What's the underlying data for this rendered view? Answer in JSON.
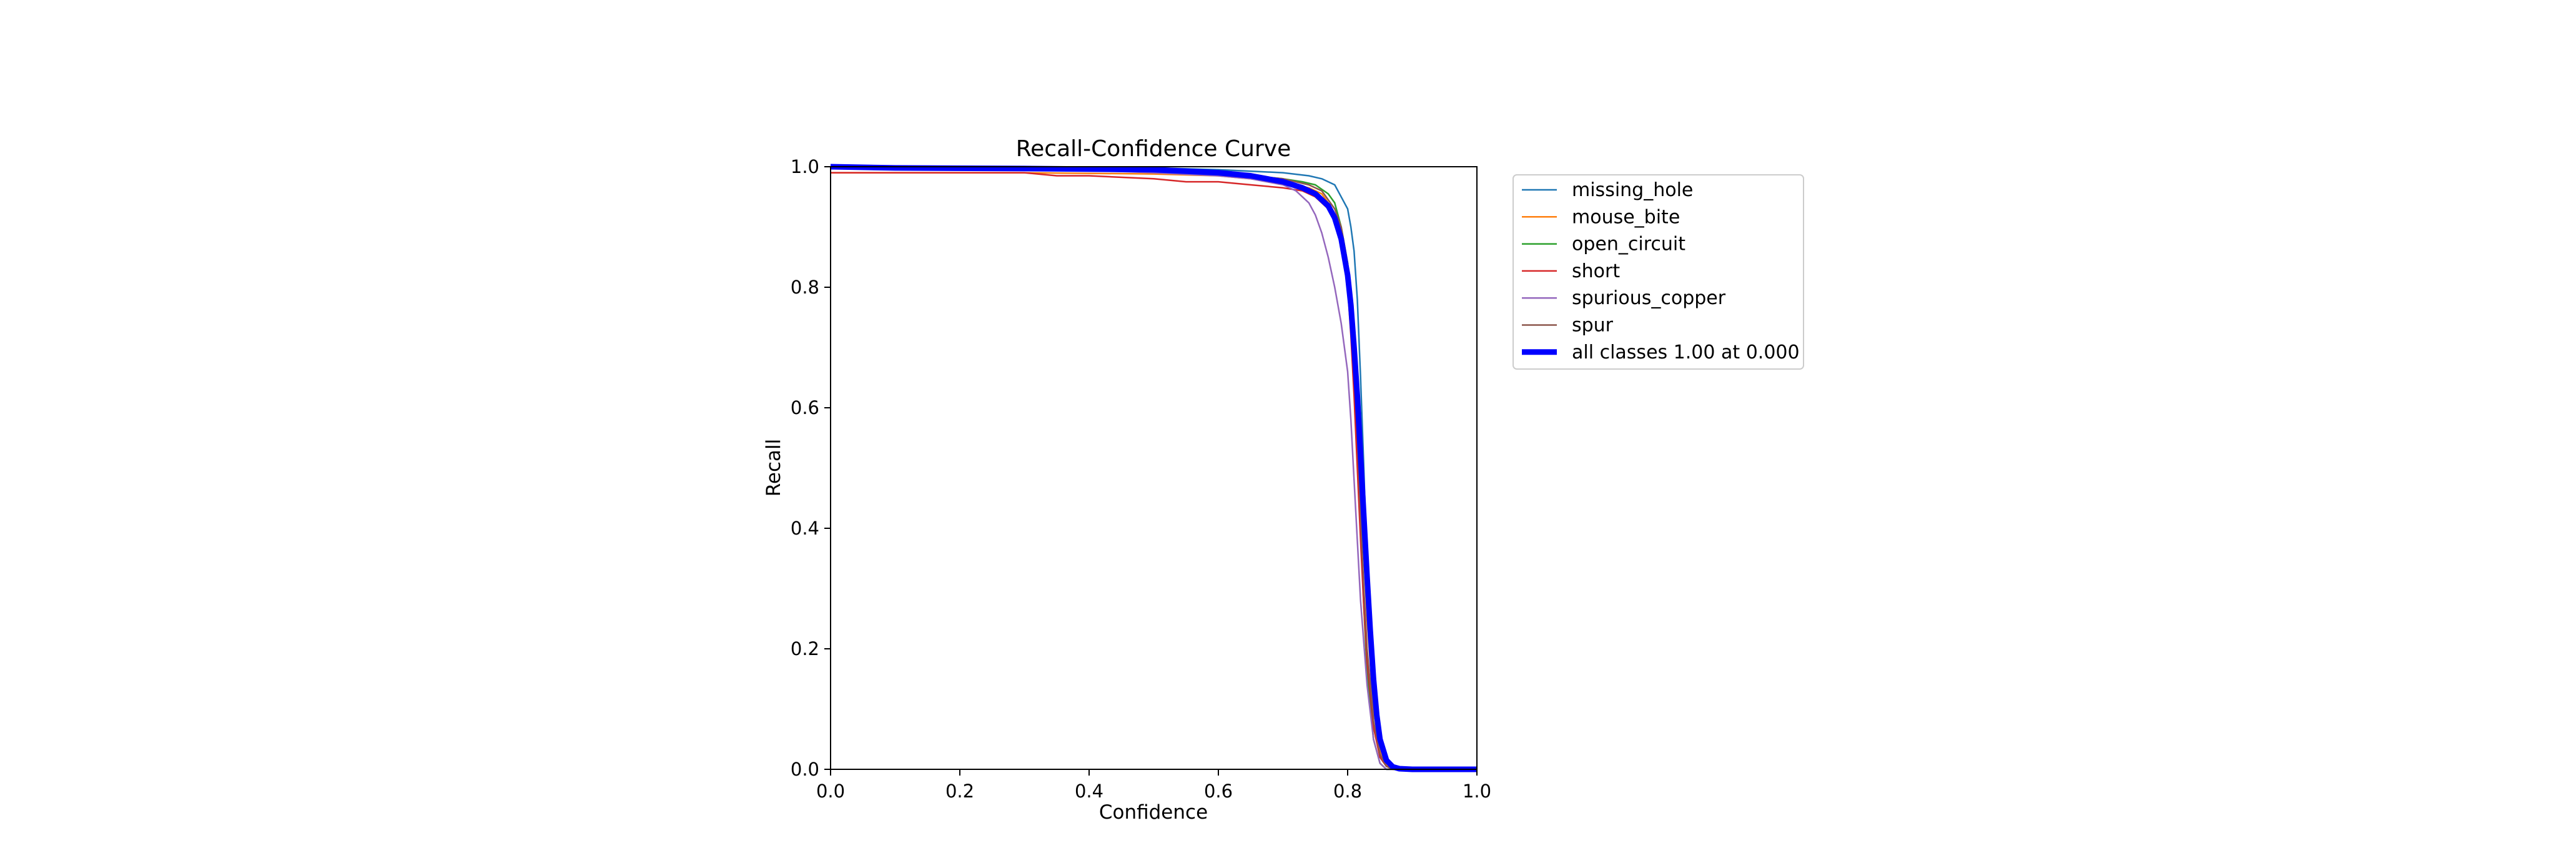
{
  "chart_data": {
    "type": "line",
    "title": "Recall-Confidence Curve",
    "xlabel": "Confidence",
    "ylabel": "Recall",
    "xlim": [
      0.0,
      1.0
    ],
    "ylim": [
      0.0,
      1.0
    ],
    "xticks": [
      "0.0",
      "0.2",
      "0.4",
      "0.6",
      "0.8",
      "1.0"
    ],
    "yticks": [
      "0.0",
      "0.2",
      "0.4",
      "0.6",
      "0.8",
      "1.0"
    ],
    "grid": false,
    "legend_position": "outside-right-top",
    "series": [
      {
        "name": "missing_hole",
        "color": "#1f77b4",
        "x": [
          0.0,
          0.3,
          0.5,
          0.6,
          0.7,
          0.74,
          0.76,
          0.78,
          0.79,
          0.8,
          0.805,
          0.81,
          0.815,
          0.82,
          0.825,
          0.83,
          0.835,
          0.84,
          0.85,
          0.86,
          0.88,
          0.9,
          1.0
        ],
        "y": [
          1.0,
          1.0,
          0.998,
          0.995,
          0.99,
          0.985,
          0.98,
          0.97,
          0.95,
          0.93,
          0.9,
          0.86,
          0.78,
          0.65,
          0.5,
          0.33,
          0.18,
          0.08,
          0.02,
          0.005,
          0.0,
          0.0,
          0.0
        ]
      },
      {
        "name": "mouse_bite",
        "color": "#ff7f0e",
        "x": [
          0.0,
          0.3,
          0.5,
          0.6,
          0.7,
          0.74,
          0.76,
          0.77,
          0.78,
          0.79,
          0.8,
          0.805,
          0.81,
          0.815,
          0.82,
          0.825,
          0.83,
          0.84,
          0.85,
          0.86,
          0.87,
          0.9,
          1.0
        ],
        "y": [
          0.99,
          0.99,
          0.988,
          0.985,
          0.975,
          0.965,
          0.955,
          0.94,
          0.92,
          0.89,
          0.84,
          0.78,
          0.7,
          0.6,
          0.48,
          0.36,
          0.25,
          0.1,
          0.03,
          0.008,
          0.0,
          0.0,
          0.0
        ]
      },
      {
        "name": "open_circuit",
        "color": "#2ca02c",
        "x": [
          0.0,
          0.3,
          0.5,
          0.6,
          0.7,
          0.73,
          0.75,
          0.77,
          0.78,
          0.79,
          0.8,
          0.805,
          0.81,
          0.815,
          0.82,
          0.825,
          0.83,
          0.84,
          0.85,
          0.86,
          0.88,
          1.0
        ],
        "y": [
          1.0,
          1.0,
          0.995,
          0.99,
          0.98,
          0.975,
          0.97,
          0.955,
          0.94,
          0.9,
          0.84,
          0.76,
          0.66,
          0.54,
          0.4,
          0.27,
          0.16,
          0.05,
          0.01,
          0.0,
          0.0,
          0.0
        ]
      },
      {
        "name": "short",
        "color": "#d62728",
        "x": [
          0.0,
          0.1,
          0.2,
          0.3,
          0.35,
          0.4,
          0.5,
          0.55,
          0.6,
          0.65,
          0.7,
          0.73,
          0.75,
          0.77,
          0.78,
          0.79,
          0.8,
          0.805,
          0.81,
          0.815,
          0.82,
          0.825,
          0.83,
          0.84,
          0.85,
          0.86,
          0.88,
          1.0
        ],
        "y": [
          0.99,
          0.99,
          0.99,
          0.99,
          0.985,
          0.985,
          0.98,
          0.975,
          0.975,
          0.97,
          0.965,
          0.96,
          0.95,
          0.93,
          0.91,
          0.87,
          0.8,
          0.72,
          0.62,
          0.5,
          0.38,
          0.27,
          0.18,
          0.07,
          0.02,
          0.005,
          0.0,
          0.0
        ]
      },
      {
        "name": "spurious_copper",
        "color": "#9467bd",
        "x": [
          0.0,
          0.3,
          0.5,
          0.6,
          0.65,
          0.7,
          0.72,
          0.74,
          0.75,
          0.76,
          0.77,
          0.78,
          0.79,
          0.8,
          0.805,
          0.81,
          0.815,
          0.82,
          0.83,
          0.84,
          0.85,
          0.86,
          0.88,
          1.0
        ],
        "y": [
          1.0,
          0.998,
          0.99,
          0.985,
          0.98,
          0.97,
          0.96,
          0.94,
          0.92,
          0.89,
          0.85,
          0.8,
          0.74,
          0.66,
          0.58,
          0.48,
          0.38,
          0.28,
          0.14,
          0.05,
          0.01,
          0.0,
          0.0,
          0.0
        ]
      },
      {
        "name": "spur",
        "color": "#8c564b",
        "x": [
          0.0,
          0.3,
          0.5,
          0.6,
          0.7,
          0.74,
          0.76,
          0.78,
          0.79,
          0.8,
          0.805,
          0.81,
          0.815,
          0.82,
          0.825,
          0.83,
          0.84,
          0.85,
          0.86,
          0.87,
          0.9,
          1.0
        ],
        "y": [
          1.0,
          1.0,
          0.995,
          0.99,
          0.98,
          0.97,
          0.96,
          0.93,
          0.9,
          0.84,
          0.78,
          0.68,
          0.56,
          0.42,
          0.3,
          0.2,
          0.08,
          0.025,
          0.005,
          0.0,
          0.0,
          0.0
        ]
      },
      {
        "name": "all classes 1.00 at 0.000",
        "color": "#0000ff",
        "bold": true,
        "x": [
          0.0,
          0.1,
          0.3,
          0.5,
          0.6,
          0.65,
          0.7,
          0.73,
          0.75,
          0.77,
          0.78,
          0.79,
          0.8,
          0.805,
          0.81,
          0.815,
          0.82,
          0.825,
          0.83,
          0.835,
          0.84,
          0.845,
          0.85,
          0.86,
          0.87,
          0.88,
          0.9,
          1.0
        ],
        "y": [
          1.0,
          0.998,
          0.997,
          0.995,
          0.99,
          0.985,
          0.975,
          0.965,
          0.955,
          0.935,
          0.915,
          0.88,
          0.82,
          0.77,
          0.7,
          0.62,
          0.52,
          0.42,
          0.32,
          0.23,
          0.15,
          0.09,
          0.05,
          0.015,
          0.004,
          0.001,
          0.0,
          0.0
        ]
      }
    ]
  }
}
